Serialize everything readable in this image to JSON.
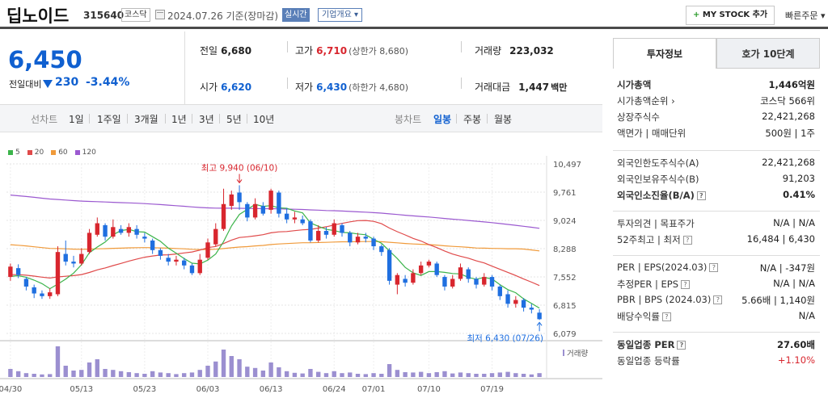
{
  "header": {
    "stock_name": "딥노이드",
    "stock_code": "315640",
    "market": "코스닥",
    "date": "2024.07.26 기준(장마감)",
    "live_label": "실시간",
    "corp_label": "기업개요 ▾",
    "mystock_label": "MY STOCK 추가",
    "quick_order": "빠른주문 ▾",
    "calendar_icon": "calendar-icon"
  },
  "price": {
    "current": "6,450",
    "change_label": "전일대비",
    "change": "230",
    "change_pct": "-3.44%",
    "direction_icon": "down-triangle-icon"
  },
  "quote": {
    "prev_label": "전일",
    "prev": "6,680",
    "high_label": "고가",
    "high": "6,710",
    "high_sub": "(상한가 8,680)",
    "volume_label": "거래량",
    "volume": "223,032",
    "open_label": "시가",
    "open": "6,620",
    "low_label": "저가",
    "low": "6,430",
    "low_sub": "(하한가 4,680)",
    "amount_label": "거래대금",
    "amount": "1,447",
    "amount_unit": "백만"
  },
  "period_bar": {
    "line_label": "선차트",
    "periods": [
      "1일",
      "1주일",
      "3개월",
      "1년",
      "3년",
      "5년",
      "10년"
    ],
    "candle_label": "봉차트",
    "candles": [
      "일봉",
      "주봉",
      "월봉"
    ],
    "selected_candle": "일봉"
  },
  "legend": [
    {
      "name": "5",
      "color": "#3cb44b"
    },
    {
      "name": "20",
      "color": "#e04a4a"
    },
    {
      "name": "60",
      "color": "#f09a3a"
    },
    {
      "name": "120",
      "color": "#9b59d0"
    }
  ],
  "chart_data": {
    "type": "candlestick",
    "y_ticks": [
      "10,497",
      "9,761",
      "9,024",
      "8,288",
      "7,552",
      "6,815",
      "6,079"
    ],
    "ylim": [
      6079,
      10497
    ],
    "x_ticks": [
      "04/30",
      "05/13",
      "05/23",
      "06/03",
      "06/13",
      "06/24",
      "07/01",
      "07/10",
      "07/19"
    ],
    "high_annotation": "최고 9,940 (06/10)",
    "low_annotation": "최저 6,430 (07/26)",
    "volume_label": "거래량",
    "colors": {
      "up": "#d8262e",
      "down": "#1f6fe0"
    },
    "candles": [
      {
        "o": 7550,
        "c": 7820,
        "h": 7900,
        "l": 7450,
        "v": 0.25
      },
      {
        "o": 7780,
        "c": 7600,
        "h": 7880,
        "l": 7520,
        "v": 0.18
      },
      {
        "o": 7500,
        "c": 7300,
        "h": 7550,
        "l": 7200,
        "v": 0.12
      },
      {
        "o": 7280,
        "c": 7120,
        "h": 7350,
        "l": 7000,
        "v": 0.1
      },
      {
        "o": 7120,
        "c": 7050,
        "h": 7200,
        "l": 6980,
        "v": 0.08
      },
      {
        "o": 7050,
        "c": 7150,
        "h": 7250,
        "l": 6980,
        "v": 0.09
      },
      {
        "o": 7100,
        "c": 8200,
        "h": 8350,
        "l": 7050,
        "v": 0.95
      },
      {
        "o": 8150,
        "c": 7950,
        "h": 8500,
        "l": 7850,
        "v": 0.35
      },
      {
        "o": 7950,
        "c": 7900,
        "h": 8100,
        "l": 7800,
        "v": 0.2
      },
      {
        "o": 7900,
        "c": 8150,
        "h": 8300,
        "l": 7850,
        "v": 0.22
      },
      {
        "o": 8200,
        "c": 8700,
        "h": 8800,
        "l": 8150,
        "v": 0.45
      },
      {
        "o": 8650,
        "c": 8950,
        "h": 9100,
        "l": 8600,
        "v": 0.55
      },
      {
        "o": 8900,
        "c": 8600,
        "h": 8950,
        "l": 8500,
        "v": 0.25
      },
      {
        "o": 8600,
        "c": 8850,
        "h": 9050,
        "l": 8550,
        "v": 0.22
      },
      {
        "o": 8800,
        "c": 8700,
        "h": 8900,
        "l": 8650,
        "v": 0.18
      },
      {
        "o": 8700,
        "c": 8850,
        "h": 8950,
        "l": 8600,
        "v": 0.15
      },
      {
        "o": 8800,
        "c": 8650,
        "h": 8900,
        "l": 8550,
        "v": 0.12
      },
      {
        "o": 8600,
        "c": 8550,
        "h": 8700,
        "l": 8450,
        "v": 0.1
      },
      {
        "o": 8500,
        "c": 8250,
        "h": 8550,
        "l": 8150,
        "v": 0.18
      },
      {
        "o": 8250,
        "c": 8100,
        "h": 8300,
        "l": 8000,
        "v": 0.14
      },
      {
        "o": 8050,
        "c": 7950,
        "h": 8150,
        "l": 7850,
        "v": 0.12
      },
      {
        "o": 7950,
        "c": 8000,
        "h": 8100,
        "l": 7850,
        "v": 0.09
      },
      {
        "o": 7980,
        "c": 7850,
        "h": 8050,
        "l": 7750,
        "v": 0.12
      },
      {
        "o": 7850,
        "c": 7650,
        "h": 7900,
        "l": 7600,
        "v": 0.14
      },
      {
        "o": 7650,
        "c": 8000,
        "h": 8150,
        "l": 7600,
        "v": 0.22
      },
      {
        "o": 8050,
        "c": 8450,
        "h": 8550,
        "l": 8000,
        "v": 0.35
      },
      {
        "o": 8400,
        "c": 8800,
        "h": 8950,
        "l": 8350,
        "v": 0.48
      },
      {
        "o": 8800,
        "c": 9450,
        "h": 9850,
        "l": 8750,
        "v": 0.85
      },
      {
        "o": 9400,
        "c": 9700,
        "h": 9800,
        "l": 9300,
        "v": 0.65
      },
      {
        "o": 9750,
        "c": 9500,
        "h": 9940,
        "l": 9300,
        "v": 0.55
      },
      {
        "o": 9450,
        "c": 9100,
        "h": 9500,
        "l": 9000,
        "v": 0.32
      },
      {
        "o": 9100,
        "c": 9450,
        "h": 9600,
        "l": 9050,
        "v": 0.28
      },
      {
        "o": 9400,
        "c": 9200,
        "h": 9500,
        "l": 9150,
        "v": 0.2
      },
      {
        "o": 9300,
        "c": 9800,
        "h": 9850,
        "l": 9200,
        "v": 0.45
      },
      {
        "o": 9750,
        "c": 9200,
        "h": 9800,
        "l": 9100,
        "v": 0.3
      },
      {
        "o": 9200,
        "c": 9050,
        "h": 9350,
        "l": 8950,
        "v": 0.18
      },
      {
        "o": 9050,
        "c": 9100,
        "h": 9250,
        "l": 8950,
        "v": 0.13
      },
      {
        "o": 9050,
        "c": 8950,
        "h": 9150,
        "l": 8900,
        "v": 0.11
      },
      {
        "o": 9000,
        "c": 8500,
        "h": 9050,
        "l": 8450,
        "v": 0.25
      },
      {
        "o": 8500,
        "c": 8750,
        "h": 8900,
        "l": 8450,
        "v": 0.16
      },
      {
        "o": 8750,
        "c": 8650,
        "h": 8850,
        "l": 8550,
        "v": 0.12
      },
      {
        "o": 8650,
        "c": 8950,
        "h": 9050,
        "l": 8600,
        "v": 0.18
      },
      {
        "o": 8900,
        "c": 8700,
        "h": 8950,
        "l": 8600,
        "v": 0.12
      },
      {
        "o": 8700,
        "c": 8450,
        "h": 8750,
        "l": 8350,
        "v": 0.14
      },
      {
        "o": 8450,
        "c": 8600,
        "h": 8700,
        "l": 8400,
        "v": 0.1
      },
      {
        "o": 8600,
        "c": 8550,
        "h": 8700,
        "l": 8450,
        "v": 0.09
      },
      {
        "o": 8550,
        "c": 8350,
        "h": 8600,
        "l": 8250,
        "v": 0.12
      },
      {
        "o": 8350,
        "c": 8200,
        "h": 8400,
        "l": 8100,
        "v": 0.1
      },
      {
        "o": 8250,
        "c": 7450,
        "h": 8300,
        "l": 7350,
        "v": 0.4
      },
      {
        "o": 7350,
        "c": 7600,
        "h": 7650,
        "l": 7100,
        "v": 0.22
      },
      {
        "o": 7500,
        "c": 7400,
        "h": 7600,
        "l": 7300,
        "v": 0.15
      },
      {
        "o": 7400,
        "c": 7650,
        "h": 7750,
        "l": 7350,
        "v": 0.14
      },
      {
        "o": 7650,
        "c": 7850,
        "h": 7950,
        "l": 7600,
        "v": 0.16
      },
      {
        "o": 7850,
        "c": 7950,
        "h": 8000,
        "l": 7800,
        "v": 0.12
      },
      {
        "o": 7900,
        "c": 7600,
        "h": 7950,
        "l": 7550,
        "v": 0.15
      },
      {
        "o": 7550,
        "c": 7300,
        "h": 7600,
        "l": 7200,
        "v": 0.18
      },
      {
        "o": 7300,
        "c": 7500,
        "h": 7600,
        "l": 7250,
        "v": 0.11
      },
      {
        "o": 7500,
        "c": 7800,
        "h": 7900,
        "l": 7450,
        "v": 0.14
      },
      {
        "o": 7750,
        "c": 7500,
        "h": 7800,
        "l": 7400,
        "v": 0.12
      },
      {
        "o": 7500,
        "c": 7350,
        "h": 7550,
        "l": 7250,
        "v": 0.1
      },
      {
        "o": 7350,
        "c": 7550,
        "h": 7650,
        "l": 7300,
        "v": 0.1
      },
      {
        "o": 7550,
        "c": 7300,
        "h": 7600,
        "l": 7200,
        "v": 0.12
      },
      {
        "o": 7300,
        "c": 7050,
        "h": 7350,
        "l": 6950,
        "v": 0.14
      },
      {
        "o": 7100,
        "c": 6850,
        "h": 7200,
        "l": 6750,
        "v": 0.16
      },
      {
        "o": 6850,
        "c": 6950,
        "h": 7050,
        "l": 6750,
        "v": 0.12
      },
      {
        "o": 6950,
        "c": 6750,
        "h": 7000,
        "l": 6650,
        "v": 0.1
      },
      {
        "o": 6750,
        "c": 6700,
        "h": 6850,
        "l": 6600,
        "v": 0.08
      },
      {
        "o": 6620,
        "c": 6450,
        "h": 6710,
        "l": 6430,
        "v": 0.12
      }
    ]
  },
  "info_panel": {
    "tab_active": "투자정보",
    "tab_inactive": "호가 10단계",
    "group1": [
      {
        "k": "시가총액",
        "v": "1,446억원",
        "bold": true
      },
      {
        "k": "시가총액순위 ›",
        "v": "코스닥 566위"
      },
      {
        "k": "상장주식수",
        "v": "22,421,268"
      },
      {
        "k": "액면가 | 매매단위",
        "v": "500원 | 1주"
      }
    ],
    "group2": [
      {
        "k": "외국인한도주식수(A)",
        "v": "22,421,268"
      },
      {
        "k": "외국인보유주식수(B)",
        "v": "91,203"
      },
      {
        "k": "외국인소진율(B/A)",
        "v": "0.41%",
        "bold": true,
        "help": true
      }
    ],
    "group3": [
      {
        "k": "투자의견 | 목표주가",
        "v": "N/A | N/A"
      },
      {
        "k": "52주최고 | 최저",
        "v": "16,484 | 6,430",
        "help": true
      }
    ],
    "group4": [
      {
        "k": "PER | EPS(2024.03)",
        "v": "N/A | -347원",
        "help": true
      },
      {
        "k": "추정PER | EPS",
        "v": "N/A | N/A",
        "help": true
      },
      {
        "k": "PBR | BPS (2024.03)",
        "v": "5.66배 | 1,140원",
        "help": true
      },
      {
        "k": "배당수익률",
        "v": "N/A",
        "help": true
      }
    ],
    "group5": [
      {
        "k": "동일업종 PER",
        "v": "27.60배",
        "bold": true,
        "help": true
      },
      {
        "k": "동일업종 등락률",
        "v": "+1.10%",
        "red": true
      }
    ]
  }
}
